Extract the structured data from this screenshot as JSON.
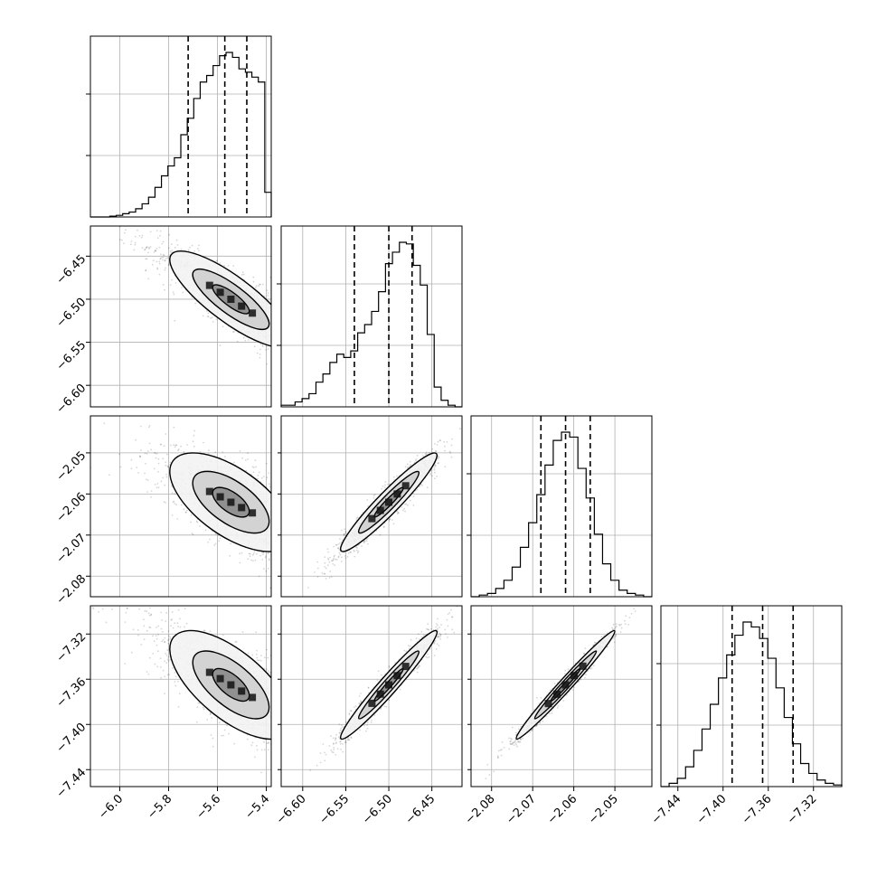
{
  "chart_data": {
    "type": "corner",
    "title": "",
    "parameters": [
      {
        "range": [
          -6.12,
          -5.38
        ],
        "ticks": [
          -6.0,
          -5.8,
          -5.6,
          -5.4
        ],
        "tick_labels": [
          "−6.0",
          "−5.8",
          "−5.6",
          "−5.4"
        ],
        "mean": -5.545,
        "sigma": 0.125,
        "skew": -0.7
      },
      {
        "range": [
          -6.625,
          -6.415
        ],
        "ticks": [
          -6.6,
          -6.55,
          -6.5,
          -6.45
        ],
        "tick_labels": [
          "−6.60",
          "−6.55",
          "−6.50",
          "−6.45"
        ],
        "mean": -6.5,
        "sigma": 0.028,
        "skew": 0.0
      },
      {
        "range": [
          -2.085,
          -2.041
        ],
        "ticks": [
          -2.08,
          -2.07,
          -2.06,
          -2.05
        ],
        "tick_labels": [
          "−2.08",
          "−2.07",
          "−2.06",
          "−2.05"
        ],
        "mean": -2.062,
        "sigma": 0.006,
        "skew": 0.0
      },
      {
        "range": [
          -7.455,
          -7.295
        ],
        "ticks": [
          -7.44,
          -7.4,
          -7.36,
          -7.32
        ],
        "tick_labels": [
          "−7.44",
          "−7.40",
          "−7.36",
          "−7.32"
        ],
        "mean": -7.365,
        "sigma": 0.024,
        "skew": 0.0
      }
    ],
    "quantiles": [
      [
        -5.72,
        -5.57,
        -5.48
      ],
      [
        -6.54,
        -6.5,
        -6.473
      ],
      [
        -2.068,
        -2.062,
        -2.056
      ],
      [
        -7.392,
        -7.365,
        -7.338
      ]
    ],
    "histograms": [
      [
        0.0,
        0.0,
        0.0,
        0.005,
        0.01,
        0.02,
        0.03,
        0.05,
        0.08,
        0.12,
        0.18,
        0.25,
        0.31,
        0.36,
        0.5,
        0.6,
        0.72,
        0.82,
        0.86,
        0.92,
        0.98,
        1.0,
        0.97,
        0.9,
        0.88,
        0.85,
        0.82,
        0.15
      ],
      [
        0.01,
        0.01,
        0.03,
        0.05,
        0.08,
        0.15,
        0.2,
        0.27,
        0.32,
        0.3,
        0.34,
        0.45,
        0.5,
        0.58,
        0.7,
        0.87,
        0.94,
        1.0,
        0.99,
        0.86,
        0.74,
        0.44,
        0.12,
        0.04,
        0.01,
        0.0
      ],
      [
        0.0,
        0.01,
        0.02,
        0.05,
        0.1,
        0.18,
        0.3,
        0.45,
        0.62,
        0.8,
        0.95,
        1.0,
        0.97,
        0.78,
        0.6,
        0.38,
        0.2,
        0.1,
        0.04,
        0.02,
        0.01,
        0.0
      ],
      [
        0.0,
        0.02,
        0.05,
        0.12,
        0.22,
        0.35,
        0.5,
        0.66,
        0.8,
        0.92,
        1.0,
        0.97,
        0.9,
        0.78,
        0.6,
        0.42,
        0.26,
        0.14,
        0.08,
        0.04,
        0.02,
        0.01
      ]
    ],
    "correlations": {
      "1_0": -0.82,
      "2_0": -0.62,
      "2_1": 0.95,
      "3_0": -0.66,
      "3_1": 0.97,
      "3_2": 0.985
    },
    "grid": true
  },
  "colors": {
    "line": "#000000",
    "grid": "#b0b0b0",
    "density": "#000000"
  }
}
